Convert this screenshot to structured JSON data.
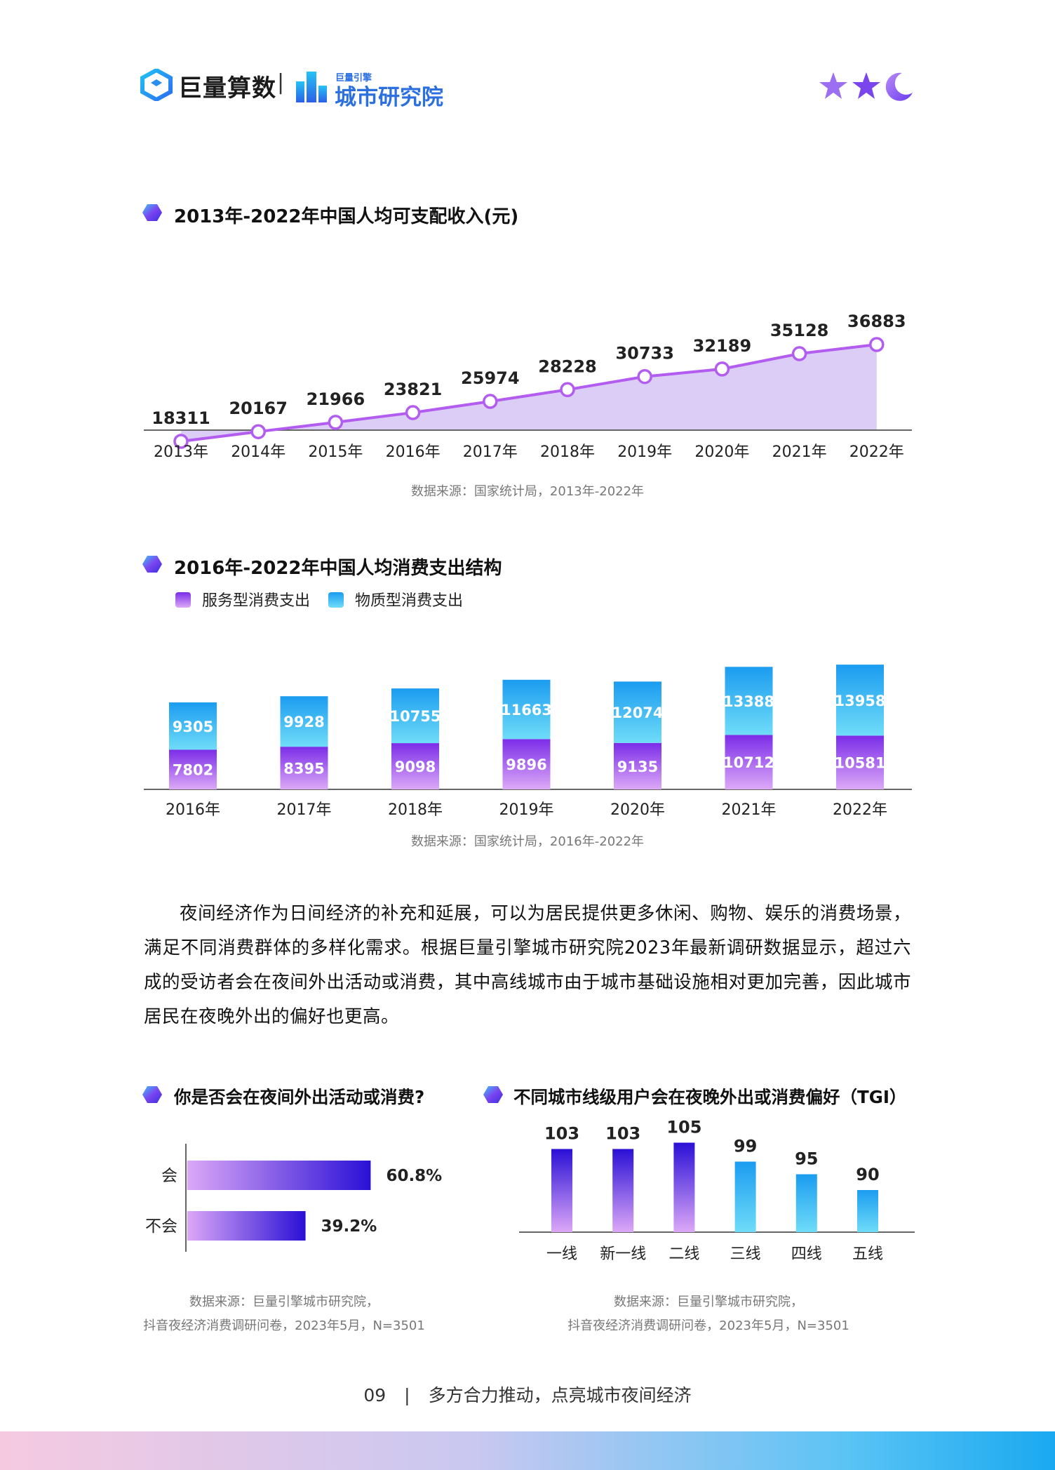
{
  "header": {
    "brand1": "巨量算数",
    "separator": "|",
    "brand2_small": "巨量引擎",
    "brand2": "城市研究院"
  },
  "colors": {
    "income_line": "#b25cf0",
    "income_area": "#dccdf6",
    "service_top": "#7b2de8",
    "service_bottom": "#dca9f7",
    "goods_top": "#1b9cf0",
    "goods_bottom": "#6fdcf8",
    "bar_purple_end": "#2a10d6",
    "bar_purple_start": "#dca8f7",
    "axis": "#666666"
  },
  "section1": {
    "title": "2013年-2022年中国人均可支配收入(元)",
    "source": "数据来源：国家统计局，2013年-2022年"
  },
  "section2": {
    "title": "2016年-2022年中国人均消费支出结构",
    "source": "数据来源：国家统计局，2016年-2022年"
  },
  "paragraph": "夜间经济作为日间经济的补充和延展，可以为居民提供更多休闲、购物、娱乐的消费场景，满足不同消费群体的多样化需求。根据巨量引擎城市研究院2023年最新调研数据显示，超过六成的受访者会在夜间外出活动或消费，其中高线城市由于城市基础设施相对更加完善，因此城市居民在夜晚外出的偏好也更高。",
  "section3": {
    "title": "你是否会在夜间外出活动或消费?",
    "source_line1": "数据来源：巨量引擎城市研究院，",
    "source_line2": "抖音夜经济消费调研问卷，2023年5月，N=3501"
  },
  "section4": {
    "title": "不同城市线级用户会在夜晚外出或消费偏好（TGI）",
    "source_line1": "数据来源：巨量引擎城市研究院，",
    "source_line2": "抖音夜经济消费调研问卷，2023年5月，N=3501"
  },
  "footer": {
    "page_number": "09",
    "separator": "|",
    "text": "多方合力推动，点亮城市夜间经济"
  },
  "chart_data": [
    {
      "type": "area",
      "title": "2013年-2022年中国人均可支配收入(元)",
      "x": [
        "2013年",
        "2014年",
        "2015年",
        "2016年",
        "2017年",
        "2018年",
        "2019年",
        "2020年",
        "2021年",
        "2022年"
      ],
      "values": [
        18311,
        20167,
        21966,
        23821,
        25974,
        28228,
        30733,
        32189,
        35128,
        36883
      ]
    },
    {
      "type": "bar",
      "stacked": true,
      "title": "2016年-2022年中国人均消费支出结构",
      "categories": [
        "2016年",
        "2017年",
        "2018年",
        "2019年",
        "2020年",
        "2021年",
        "2022年"
      ],
      "series": [
        {
          "name": "服务型消费支出",
          "values": [
            7802,
            8395,
            9098,
            9896,
            9135,
            10712,
            10581
          ]
        },
        {
          "name": "物质型消费支出",
          "values": [
            9305,
            9928,
            10755,
            11663,
            12074,
            13388,
            13958
          ]
        }
      ],
      "legend": "top-left"
    },
    {
      "type": "bar",
      "orientation": "horizontal",
      "title": "你是否会在夜间外出活动或消费?",
      "categories": [
        "会",
        "不会"
      ],
      "values": [
        60.8,
        39.2
      ],
      "value_labels": [
        "60.8%",
        "39.2%"
      ]
    },
    {
      "type": "bar",
      "title": "不同城市线级用户会在夜晚外出或消费偏好（TGI）",
      "categories": [
        "一线",
        "新一线",
        "二线",
        "三线",
        "四线",
        "五线"
      ],
      "values": [
        103,
        103,
        105,
        99,
        95,
        90
      ]
    }
  ]
}
